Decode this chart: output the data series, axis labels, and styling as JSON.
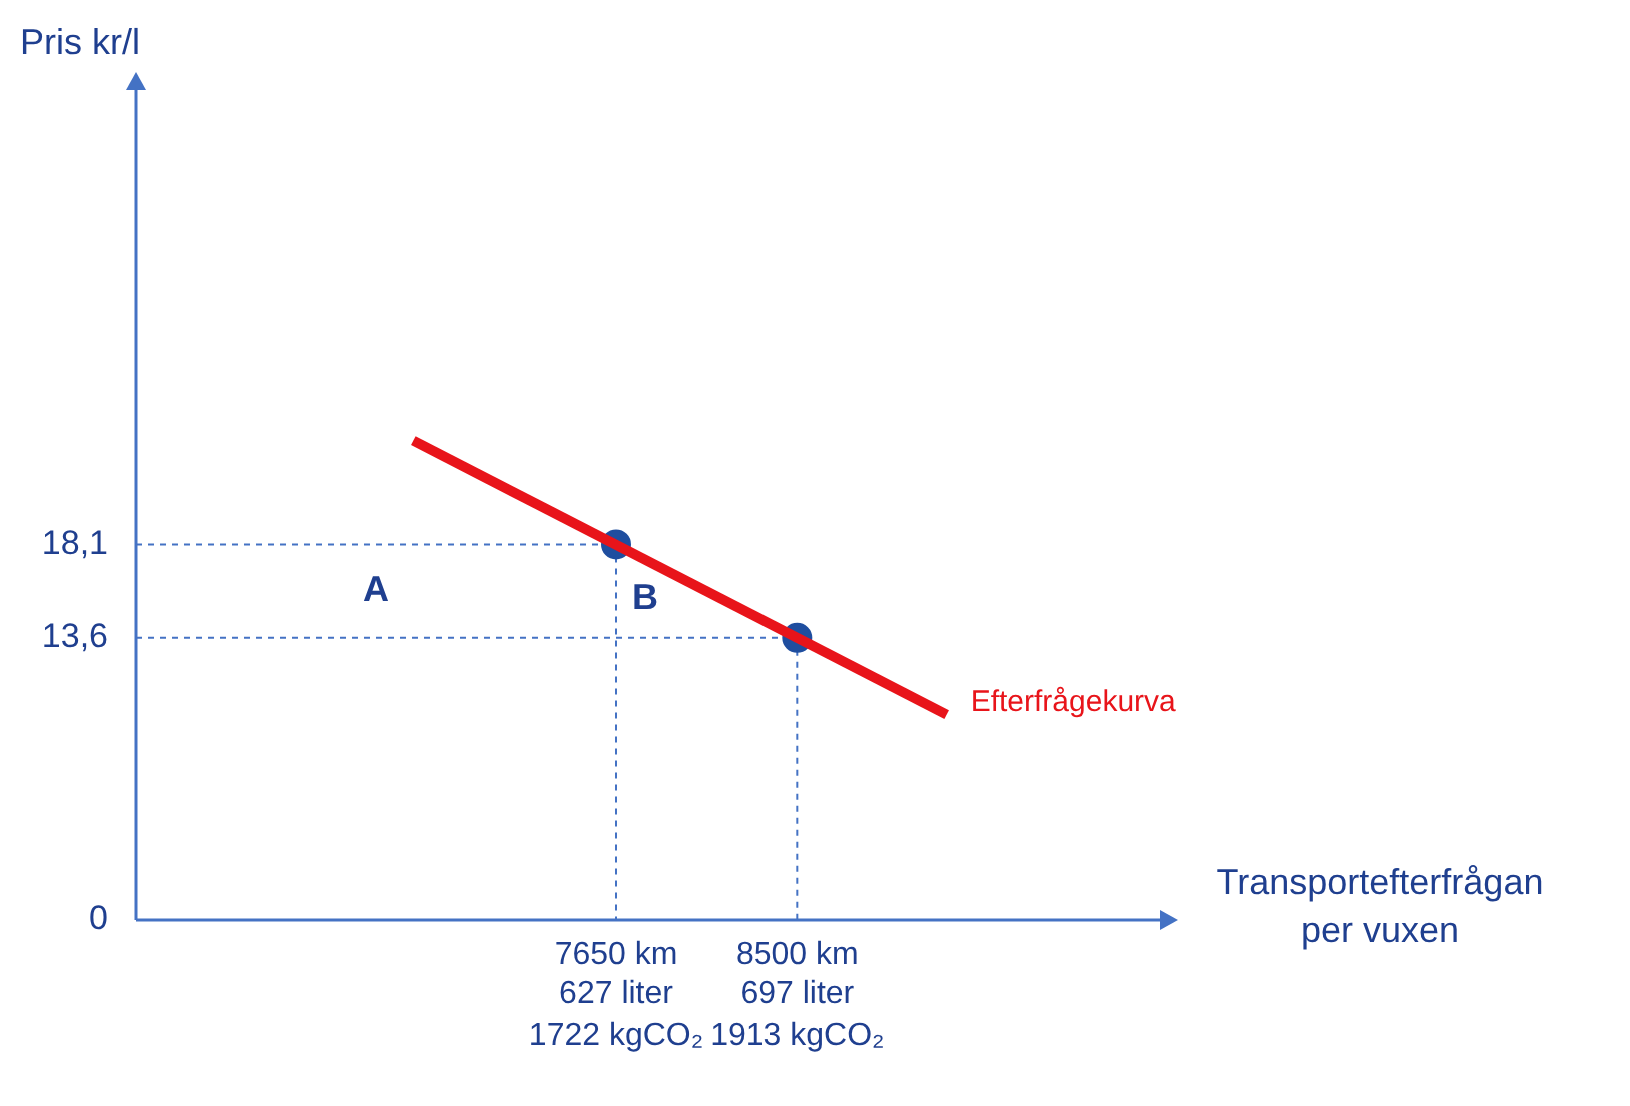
{
  "chart_data": {
    "type": "line",
    "xlabel": "Transportefterfrågan per vuxen",
    "ylabel": "Pris kr/l",
    "xlim": [
      5400,
      10200
    ],
    "ylim": [
      0,
      40
    ],
    "xticks": [
      {
        "value": 7650,
        "label": "7650 km"
      },
      {
        "value": 8500,
        "label": "8500 km"
      }
    ],
    "yticks": [
      0,
      {
        "value": 13.6,
        "label": "13,6"
      },
      {
        "value": 18.1,
        "label": "18,1"
      }
    ],
    "grid": false,
    "legend": false,
    "series": [
      {
        "name": "Efterfrågekurva",
        "color": "#e8141a",
        "x": [
          6700,
          9200
        ],
        "values": [
          23.1,
          9.9
        ],
        "marker": "none"
      },
      {
        "type": "scatter",
        "color": "#1f4e9f",
        "x": [
          7650,
          8500
        ],
        "values": [
          18.1,
          13.6
        ],
        "marker": "circle"
      }
    ],
    "ref_lines": [
      {
        "axis": "y",
        "value": 18.1,
        "line_style": "dashed",
        "color": "#4472c4"
      },
      {
        "axis": "y",
        "value": 13.6,
        "line_style": "dashed",
        "color": "#4472c4"
      },
      {
        "axis": "x",
        "value": 7650,
        "line_style": "dashed",
        "color": "#4472c4"
      },
      {
        "axis": "x",
        "value": 8500,
        "line_style": "dashed",
        "color": "#4472c4"
      }
    ],
    "annotations": [
      "A",
      "B",
      "627 liter",
      "1722 kgCO₂",
      "697 liter",
      "1913 kgCO₂"
    ]
  }
}
